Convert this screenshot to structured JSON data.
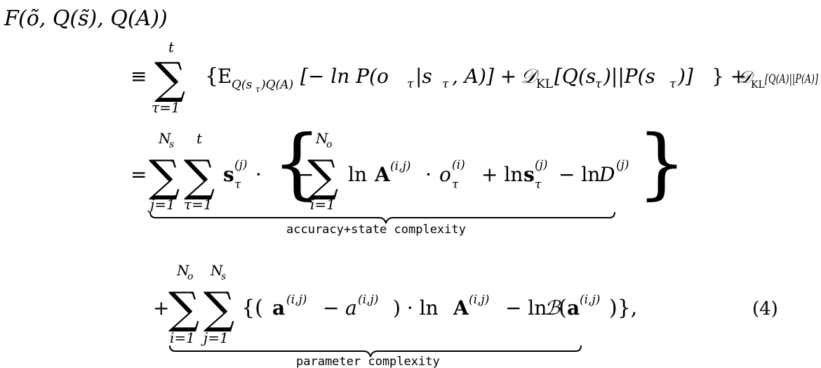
{
  "equation": {
    "number": "(4)",
    "lines": {
      "lhs": {
        "head": "F",
        "args": "(õ, Q(s̃), Q(A))"
      },
      "line1": {
        "equiv": "≡",
        "sum_symbol": "∑",
        "sum_upper": "t",
        "sum_lower": "τ=1",
        "open": "{",
        "expect": "E",
        "expect_sub": "Q(s",
        "expect_sub_tau": "τ",
        "expect_sub_end": ")Q(A)",
        "term1": "[− ln P(o",
        "term1_tau": "τ",
        "term1_mid": "|s",
        "term1_tau2": "τ",
        "term1_end": ", A)] +",
        "kl1": "𝒟",
        "kl1_sub": "KL",
        "kl1_arg": "[Q(s",
        "kl1_tau": "τ",
        "kl1_mid": ")||P(s",
        "kl1_tau2": "τ",
        "kl1_end": ")]",
        "close": "} +",
        "kl2": "𝒟",
        "kl2_sub": "KL",
        "kl2_arg": "[Q(A)||P(A)]"
      },
      "line2": {
        "eq": "=",
        "sum1_upper": "N",
        "sum1_upper_sub": "s",
        "sum1_lower": "j=1",
        "sum2_upper": "t",
        "sum2_lower": "τ=1",
        "s_bold": "s",
        "s_sup": "(j)",
        "s_sub": "τ",
        "dot": "·",
        "inner_minus": "−",
        "sum3_upper": "N",
        "sum3_upper_sub": "o",
        "sum3_lower": "i=1",
        "ln1": "ln",
        "A_bold": "A",
        "A_sup": "(i,j)",
        "dot2": "·",
        "o": "o",
        "o_sup": "(i)",
        "o_sub": "τ",
        "plus_ln": "+ ln",
        "s2_bold": "s",
        "s2_sup": "(j)",
        "s2_sub": "τ",
        "minus_ln": "− ln",
        "D": "D",
        "D_sup": "(j)",
        "brace_label": "accuracy+state complexity"
      },
      "line3": {
        "plus": "+",
        "sum1_upper": "N",
        "sum1_upper_sub": "o",
        "sum1_lower": "i=1",
        "sum2_upper": "N",
        "sum2_upper_sub": "s",
        "sum2_lower": "j=1",
        "open": "{(",
        "a_bold": "a",
        "a_sup": "(i,j)",
        "minus": "−",
        "a": "a",
        "a2_sup": "(i,j)",
        "close_dot": ") · ln",
        "A_bold": "A",
        "A_sup": "(i,j)",
        "minus_ln": "− ln",
        "B": "ℬ",
        "B_open": "(",
        "a3_bold": "a",
        "a3_sup": "(i,j)",
        "B_close": ")},",
        "brace_label": "parameter complexity"
      }
    }
  }
}
